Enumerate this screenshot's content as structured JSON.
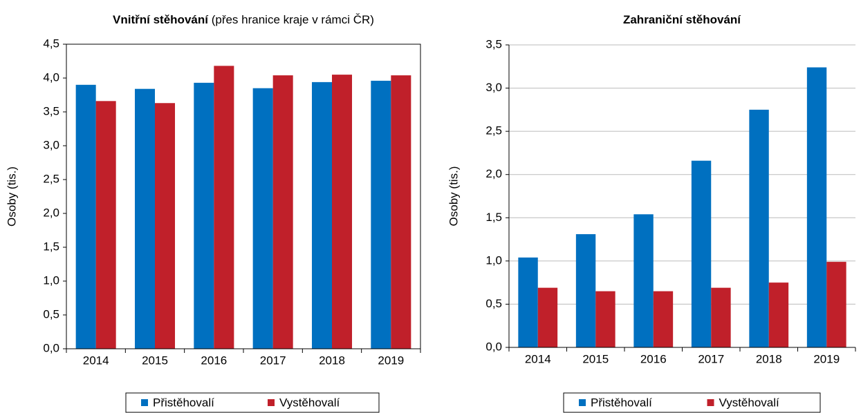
{
  "chart_data": [
    {
      "type": "bar",
      "title": "Vnitřní stěhování",
      "subtitle": "(přes hranice kraje v rámci ČR)",
      "y_label": "Osoby (tis.)",
      "categories": [
        "2014",
        "2015",
        "2016",
        "2017",
        "2018",
        "2019"
      ],
      "series": [
        {
          "name": "Přistěhovalí",
          "color": "#0070c0",
          "values": [
            3.9,
            3.84,
            3.93,
            3.85,
            3.94,
            3.96
          ]
        },
        {
          "name": "Vystěhovalí",
          "color": "#c0202a",
          "values": [
            3.66,
            3.63,
            4.18,
            4.04,
            4.05,
            4.04
          ]
        }
      ],
      "ylim": [
        0,
        4.5
      ],
      "yticks": [
        {
          "value": 0,
          "label": "0,0"
        },
        {
          "value": 0.5,
          "label": "0,5"
        },
        {
          "value": 1,
          "label": "1,0"
        },
        {
          "value": 1.5,
          "label": "1,5"
        },
        {
          "value": 2,
          "label": "2,0"
        },
        {
          "value": 2.5,
          "label": "2,5"
        },
        {
          "value": 3,
          "label": "3,0"
        },
        {
          "value": 3.5,
          "label": "3,5"
        },
        {
          "value": 4,
          "label": "4,0"
        },
        {
          "value": 4.5,
          "label": "4,5"
        }
      ],
      "grid": false,
      "legend": "bottom"
    },
    {
      "type": "bar",
      "title": "Zahraniční stěhování",
      "y_label": "Osoby (tis.)",
      "categories": [
        "2014",
        "2015",
        "2016",
        "2017",
        "2018",
        "2019"
      ],
      "series": [
        {
          "name": "Přistěhovalí",
          "color": "#0070c0",
          "values": [
            1.04,
            1.31,
            1.54,
            2.16,
            2.75,
            3.24
          ]
        },
        {
          "name": "Vystěhovalí",
          "color": "#c0202a",
          "values": [
            0.69,
            0.65,
            0.65,
            0.69,
            0.75,
            0.99
          ]
        }
      ],
      "ylim": [
        0,
        3.5
      ],
      "yticks": [
        {
          "value": 0,
          "label": "0,0"
        },
        {
          "value": 0.5,
          "label": "0,5"
        },
        {
          "value": 1,
          "label": "1,0"
        },
        {
          "value": 1.5,
          "label": "1,5"
        },
        {
          "value": 2,
          "label": "2,0"
        },
        {
          "value": 2.5,
          "label": "2,5"
        },
        {
          "value": 3,
          "label": "3,0"
        },
        {
          "value": 3.5,
          "label": "3,5"
        }
      ],
      "grid": true,
      "legend": "bottom"
    }
  ]
}
